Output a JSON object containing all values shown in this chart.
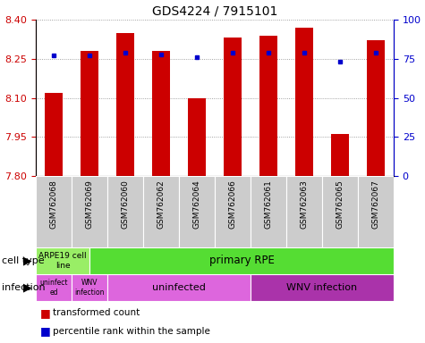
{
  "title": "GDS4224 / 7915101",
  "samples": [
    "GSM762068",
    "GSM762069",
    "GSM762060",
    "GSM762062",
    "GSM762064",
    "GSM762066",
    "GSM762061",
    "GSM762063",
    "GSM762065",
    "GSM762067"
  ],
  "transformed_counts": [
    8.12,
    8.28,
    8.35,
    8.28,
    8.1,
    8.33,
    8.34,
    8.37,
    7.96,
    8.32
  ],
  "percentile_ranks": [
    77,
    77,
    79,
    78,
    76,
    79,
    79,
    79,
    73,
    79
  ],
  "ylim_left": [
    7.8,
    8.4
  ],
  "ylim_right": [
    0,
    100
  ],
  "yticks_left": [
    7.8,
    7.95,
    8.1,
    8.25,
    8.4
  ],
  "yticks_right": [
    0,
    25,
    50,
    75,
    100
  ],
  "bar_color": "#cc0000",
  "dot_color": "#0000cc",
  "bar_bottom": 7.8,
  "cell_type_color_1": "#99ee66",
  "cell_type_color_2": "#55dd33",
  "infection_color": "#dd66dd",
  "infection_color_dark": "#aa33aa",
  "grid_color": "#888888",
  "left_label_color": "#cc0000",
  "right_label_color": "#0000cc",
  "tick_label_color": "#444444",
  "sample_bg_color": "#cccccc",
  "cell_type_label1": "ARPE19 cell\nline",
  "cell_type_label2": "primary RPE",
  "infection_label_small1": "uninfect\ned",
  "infection_label_small2": "WNV\ninfection",
  "infection_label_large1": "uninfected",
  "infection_label_large2": "WNV infection",
  "left_row_label1": "cell type",
  "left_row_label2": "infection",
  "legend_label1": "transformed count",
  "legend_label2": "percentile rank within the sample"
}
